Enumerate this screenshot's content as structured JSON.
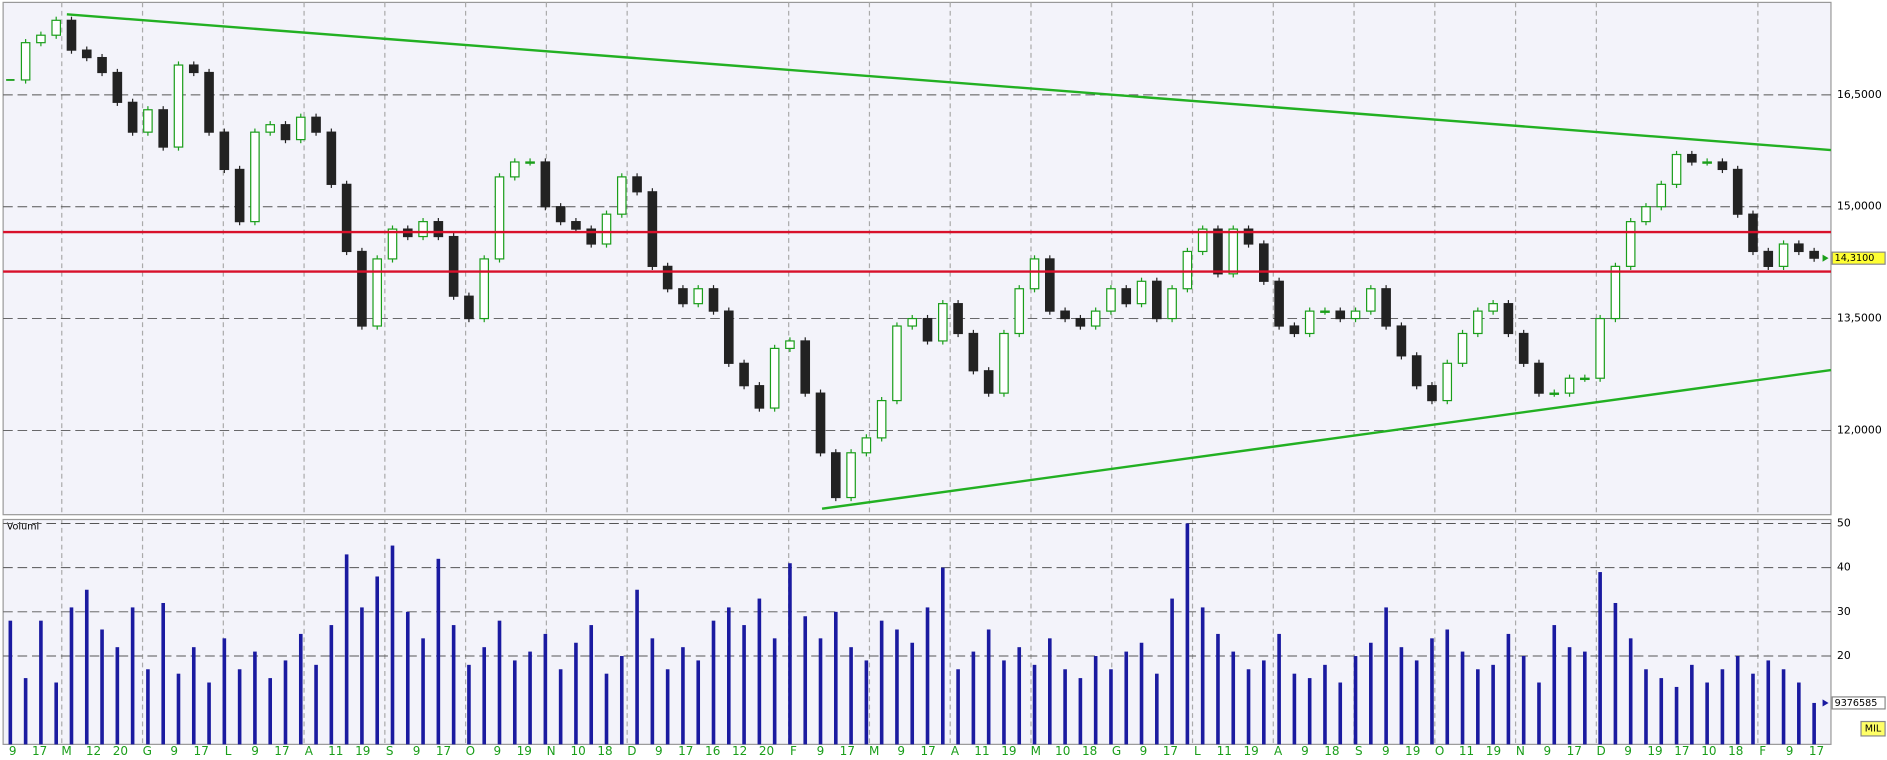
{
  "chart_data": {
    "type": "candlestick",
    "close": [
      16.7,
      17.2,
      17.3,
      17.5,
      17.1,
      17.0,
      16.8,
      16.4,
      16.0,
      16.3,
      15.8,
      16.9,
      16.8,
      16.0,
      15.5,
      14.8,
      16.0,
      16.1,
      15.9,
      16.2,
      16.0,
      15.3,
      14.4,
      13.4,
      14.3,
      14.7,
      14.6,
      14.8,
      14.6,
      13.8,
      13.5,
      14.3,
      15.4,
      15.6,
      15.6,
      15.0,
      14.8,
      14.7,
      14.5,
      14.9,
      15.4,
      15.2,
      14.2,
      13.9,
      13.7,
      13.9,
      13.6,
      12.9,
      12.6,
      12.3,
      13.1,
      13.2,
      12.5,
      11.7,
      11.1,
      11.7,
      11.9,
      12.4,
      13.4,
      13.5,
      13.2,
      13.7,
      13.3,
      12.8,
      12.5,
      13.3,
      13.9,
      14.3,
      13.6,
      13.5,
      13.4,
      13.6,
      13.9,
      13.7,
      14.0,
      13.5,
      13.9,
      14.4,
      14.7,
      14.1,
      14.7,
      14.5,
      14.0,
      13.4,
      13.3,
      13.6,
      13.6,
      13.5,
      13.6,
      13.9,
      13.4,
      13.0,
      12.6,
      12.4,
      12.9,
      13.3,
      13.6,
      13.7,
      13.3,
      12.9,
      12.5,
      12.5,
      12.7,
      12.7,
      13.5,
      14.2,
      14.8,
      15.0,
      15.3,
      15.7,
      15.6,
      15.6,
      15.5,
      14.9,
      14.4,
      14.2,
      14.5,
      14.4,
      14.31
    ],
    "up_color": "#1a9e1a",
    "down_color": "#222222",
    "ylim": [
      10.87,
      17.74
    ],
    "yticks": [
      {
        "value": 12,
        "label": "12,0000"
      },
      {
        "value": 13.5,
        "label": "13,5000"
      },
      {
        "value": 15,
        "label": "15,0000"
      },
      {
        "value": 16.5,
        "label": "16,5000"
      }
    ],
    "last": {
      "value": 14.31,
      "label": "14,3100"
    },
    "hlines": [
      14.66,
      14.13
    ],
    "hline_color": "#d8102a",
    "trendlines": [
      {
        "values": [
          17.58,
          15.76
        ]
      },
      {
        "values": [
          10.95,
          12.81
        ]
      }
    ],
    "trend_color": "#22b022",
    "volume": {
      "label": "Volumi",
      "unit": "MIL",
      "color": "#1a1aa0",
      "values": [
        28,
        15,
        28,
        14,
        31,
        35,
        26,
        22,
        31,
        17,
        32,
        16,
        22,
        14,
        24,
        17,
        21,
        15,
        19,
        25,
        18,
        27,
        43,
        31,
        38,
        45,
        30,
        24,
        42,
        27,
        18,
        22,
        28,
        19,
        21,
        25,
        17,
        23,
        27,
        16,
        20,
        35,
        24,
        17,
        22,
        19,
        28,
        31,
        27,
        33,
        24,
        41,
        29,
        24,
        30,
        22,
        19,
        28,
        26,
        23,
        31,
        40,
        17,
        21,
        26,
        19,
        22,
        18,
        24,
        17,
        15,
        20,
        17,
        21,
        23,
        16,
        33,
        50,
        31,
        25,
        21,
        17,
        19,
        25,
        16,
        15,
        18,
        14,
        20,
        23,
        31,
        22,
        19,
        24,
        26,
        21,
        17,
        18,
        25,
        20,
        14,
        27,
        22,
        21,
        39,
        32,
        24,
        17,
        15,
        13,
        18,
        14,
        17,
        20,
        16,
        19,
        17,
        14,
        9.376585
      ],
      "ylim": [
        0,
        50.9
      ],
      "yticks": [
        20,
        30,
        40,
        50
      ],
      "last": {
        "value": 9.376585,
        "label": "9376585"
      }
    },
    "x_labels": [
      "9",
      "17",
      "M",
      "12",
      "20",
      "G",
      "9",
      "17",
      "L",
      "9",
      "17",
      "A",
      "11",
      "19",
      "S",
      "9",
      "17",
      "O",
      "9",
      "19",
      "N",
      "10",
      "18",
      "D",
      "9",
      "17",
      "16",
      "12",
      "20",
      "F",
      "9",
      "17",
      "M",
      "9",
      "17",
      "A",
      "11",
      "19",
      "M",
      "10",
      "18",
      "G",
      "9",
      "17",
      "L",
      "11",
      "19",
      "A",
      "9",
      "18",
      "S",
      "9",
      "19",
      "O",
      "11",
      "19",
      "N",
      "9",
      "17",
      "D",
      "9",
      "19",
      "17",
      "10",
      "18",
      "F",
      "9",
      "17"
    ],
    "grid": true
  }
}
